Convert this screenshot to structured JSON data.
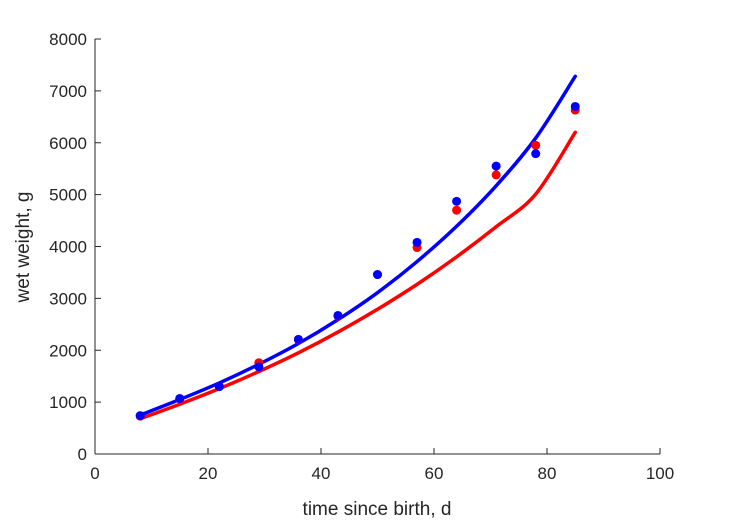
{
  "chart_data": {
    "type": "scatter",
    "title": "",
    "xlabel": "time since birth, d",
    "ylabel": "wet weight, g",
    "xlim": [
      0,
      100
    ],
    "ylim": [
      0,
      8000
    ],
    "xticks": [
      0,
      20,
      40,
      60,
      80,
      100
    ],
    "yticks": [
      0,
      1000,
      2000,
      3000,
      4000,
      5000,
      6000,
      7000,
      8000
    ],
    "xtick_labels": [
      "0",
      "20",
      "40",
      "60",
      "80",
      "100"
    ],
    "ytick_labels": [
      "0",
      "1000",
      "2000",
      "3000",
      "4000",
      "5000",
      "6000",
      "7000",
      "8000"
    ],
    "grid": false,
    "legend": "none",
    "series": [
      {
        "kind": "points",
        "color": "#ff0000",
        "x": [
          8,
          15,
          22,
          29,
          36,
          43,
          50,
          57,
          64,
          71,
          78,
          85
        ],
        "y": [
          730,
          1060,
          1300,
          1760,
          2200,
          2660,
          3460,
          3980,
          4700,
          5380,
          5950,
          6630
        ]
      },
      {
        "kind": "points",
        "color": "#0000ff",
        "x": [
          8,
          15,
          22,
          29,
          36,
          43,
          50,
          57,
          64,
          71,
          78,
          85
        ],
        "y": [
          740,
          1070,
          1300,
          1680,
          2210,
          2670,
          3460,
          4080,
          4870,
          5550,
          5790,
          6700
        ]
      },
      {
        "kind": "curve",
        "color": "#ff0000",
        "x": [
          8,
          15,
          22,
          29,
          36,
          43,
          50,
          57,
          64,
          71,
          78,
          85
        ],
        "y": [
          680,
          960,
          1260,
          1590,
          1950,
          2350,
          2790,
          3270,
          3800,
          4380,
          5010,
          6200
        ]
      },
      {
        "kind": "curve",
        "color": "#0000ff",
        "x": [
          8,
          15,
          22,
          29,
          36,
          43,
          50,
          57,
          64,
          71,
          78,
          85
        ],
        "y": [
          750,
          1050,
          1370,
          1730,
          2130,
          2590,
          3110,
          3710,
          4390,
          5170,
          6090,
          7280
        ]
      }
    ]
  }
}
